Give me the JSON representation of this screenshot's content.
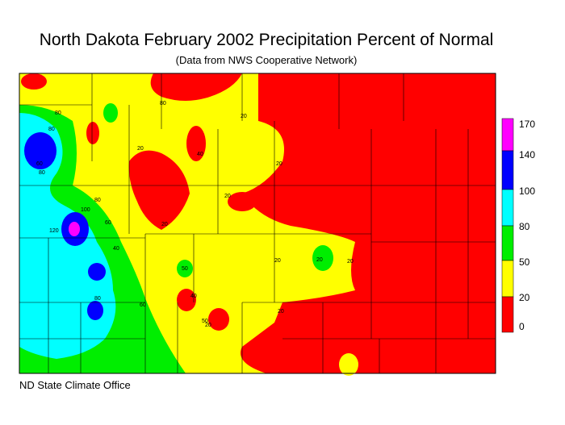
{
  "title": "North Dakota February 2002 Precipitation Percent of Normal",
  "subtitle": "(Data from NWS Cooperative Network)",
  "credit": "ND State Climate Office",
  "legend": {
    "bins": [
      {
        "label": "0",
        "color": "#ff0000"
      },
      {
        "label": "20",
        "color": "#ffff00"
      },
      {
        "label": "50",
        "color": "#00ee00"
      },
      {
        "label": "80",
        "color": "#00ffff"
      },
      {
        "label": "100",
        "color": "#0000ff"
      },
      {
        "label": "140",
        "color": "#ff00ff"
      },
      {
        "label": "170",
        "color": ""
      }
    ]
  },
  "contour_labels": [
    "80",
    "80",
    "60",
    "80",
    "120",
    "100",
    "80",
    "60",
    "40",
    "80",
    "60",
    "20",
    "80",
    "20",
    "20",
    "20",
    "40",
    "20",
    "20",
    "20",
    "20",
    "40",
    "50",
    "50",
    "20",
    "20"
  ]
}
